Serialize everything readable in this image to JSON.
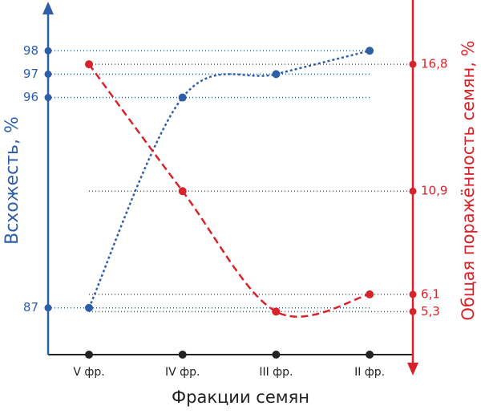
{
  "chart_data": {
    "type": "line",
    "categories": [
      "V фр.",
      "IV фр.",
      "III фр.",
      "II фр."
    ],
    "x_label": "Фракции семян",
    "y_label": "Всхожесть, %",
    "y2_label": "Общая поражённость семян, %",
    "series": [
      {
        "color": "#2f5ea8",
        "line_style": "dotted",
        "values": [
          87,
          96,
          97,
          98
        ]
      },
      {
        "color": "#d9232a",
        "line_style": "dashed",
        "axis": "y2",
        "values": [
          16.8,
          10.9,
          5.3,
          6.1
        ]
      }
    ],
    "ylim": [
      85,
      100
    ],
    "yticks": [
      87,
      96,
      97,
      98
    ],
    "y2lim": [
      3.3,
      19.6
    ],
    "y2ticks": [
      {
        "value": 16.8,
        "label": "16,8"
      },
      {
        "value": 10.9,
        "label": "10,9"
      },
      {
        "value": 6.1,
        "label": "6,1"
      },
      {
        "value": 5.3,
        "label": "5,3"
      }
    ]
  }
}
